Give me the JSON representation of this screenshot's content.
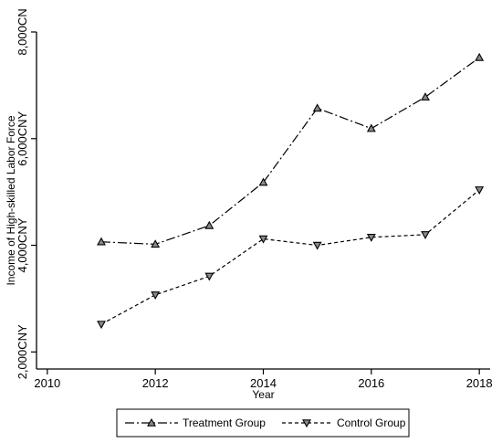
{
  "chart_data": {
    "type": "line",
    "title": "",
    "xlabel": "Year",
    "ylabel": "Income of High-skilled Labor Force",
    "xlim": [
      2009.8,
      2018.2
    ],
    "ylim": [
      1680,
      8000
    ],
    "x_ticks": [
      2010,
      2012,
      2014,
      2016,
      2018
    ],
    "x_tick_labels": [
      "2010",
      "2012",
      "2014",
      "2016",
      "2018"
    ],
    "y_ticks": [
      2000,
      4000,
      6000,
      8000
    ],
    "y_tick_labels": [
      "2,000CNY",
      "4,000CNY",
      "6,000CNY",
      "8,000CN"
    ],
    "grid": false,
    "legend_position": "bottom",
    "series": [
      {
        "name": "Treatment Group",
        "x": [
          2011,
          2012,
          2013,
          2014,
          2015,
          2016,
          2017,
          2018
        ],
        "y": [
          4065,
          4020,
          4370,
          5180,
          6570,
          6190,
          6780,
          7520
        ],
        "marker": "triangle-up",
        "line_style": "dash-dot"
      },
      {
        "name": "Control Group",
        "x": [
          2011,
          2012,
          2013,
          2014,
          2015,
          2016,
          2017,
          2018
        ],
        "y": [
          2520,
          3070,
          3420,
          4120,
          4000,
          4150,
          4200,
          5040
        ],
        "marker": "triangle-down",
        "line_style": "dashed"
      }
    ]
  }
}
